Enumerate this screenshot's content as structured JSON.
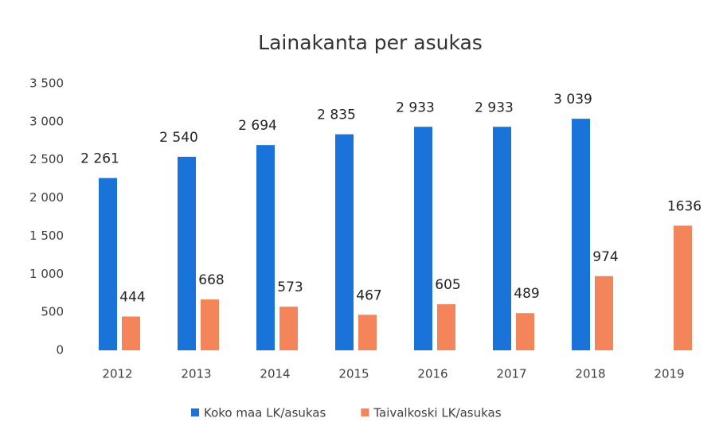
{
  "chart_data": {
    "type": "bar",
    "title": "Lainakanta per asukas",
    "categories": [
      "2012",
      "2013",
      "2014",
      "2015",
      "2016",
      "2017",
      "2018",
      "2019"
    ],
    "series": [
      {
        "name": "Koko maa LK/asukas",
        "color": "#1a73d9",
        "values": [
          2261,
          2540,
          2694,
          2835,
          2933,
          2933,
          3039,
          null
        ],
        "value_labels": [
          "2 261",
          "2 540",
          "2 694",
          "2 835",
          "2 933",
          "2 933",
          "3 039",
          null
        ]
      },
      {
        "name": "Taivalkoski LK/asukas",
        "color": "#f4845a",
        "values": [
          444,
          668,
          573,
          467,
          605,
          489,
          974,
          1636
        ]
      }
    ],
    "ylim": [
      0,
      3500
    ],
    "yticks": [
      0,
      500,
      {
        "value": 1000,
        "label": "1 000"
      },
      {
        "value": 1500,
        "label": "1 500"
      },
      {
        "value": 2000,
        "label": "2 000"
      },
      {
        "value": 2500,
        "label": "2 500"
      },
      {
        "value": 3000,
        "label": "3 000"
      },
      {
        "value": 3500,
        "label": "3 500"
      }
    ],
    "grid": false,
    "legend": "bottom"
  }
}
